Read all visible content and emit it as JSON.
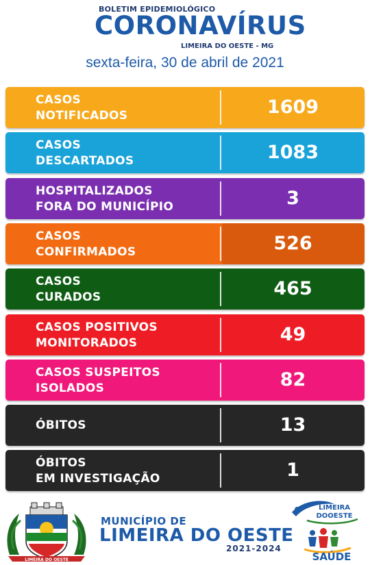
{
  "header": {
    "bulletin": "BOLETIM EPIDEMIOLÓGICO",
    "title": "CORONAVÍRUS",
    "subtitle": "LIMEIRA DO OESTE - MG",
    "date": "sexta-feira, 30 de abril de 2021"
  },
  "rows": [
    {
      "label": "CASOS\nNOTIFICADOS",
      "value": "1609",
      "color": "#f7a81b"
    },
    {
      "label": "CASOS\nDESCARTADOS",
      "value": "1083",
      "color": "#1aa3d9"
    },
    {
      "label": "HOSPITALIZADOS\nFORA DO MUNICÍPIO",
      "value": "3",
      "color": "#7b2fb0"
    },
    {
      "label": "CASOS\nCONFIRMADOS",
      "value": "526",
      "color": "#f26b12",
      "value_color": "#d95a0c"
    },
    {
      "label": "CASOS\nCURADOS",
      "value": "465",
      "color": "#0f5d14"
    },
    {
      "label": "CASOS POSITIVOS\nMONITORADOS",
      "value": "49",
      "color": "#ee1c24"
    },
    {
      "label": "CASOS SUSPEITOS\nISOLADOS",
      "value": "82",
      "color": "#f0187a"
    },
    {
      "label": "ÓBITOS",
      "value": "13",
      "color": "#262626"
    },
    {
      "label": "ÓBITOS\nEM INVESTIGAÇÃO",
      "value": "1",
      "color": "#262626"
    }
  ],
  "footer": {
    "municipio_top": "MUNICÍPIO DE",
    "municipio_name": "LIMEIRA DO OESTE",
    "years": "2021-2024",
    "crest_banner": "LIMEIRA DO OESTE",
    "sec_line1": "LIMEIRA",
    "sec_line2": "DOOESTE",
    "saude": "SAÚDE"
  }
}
